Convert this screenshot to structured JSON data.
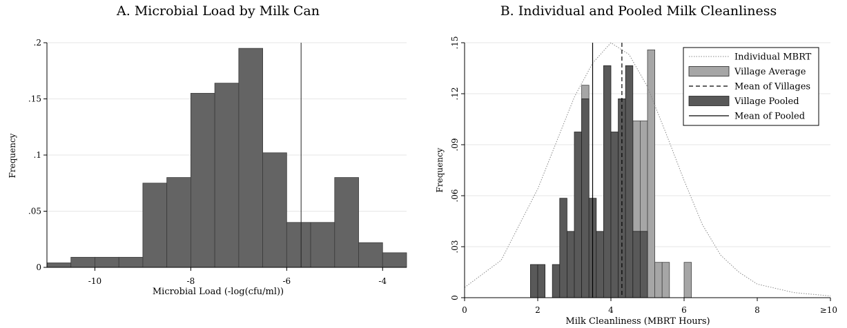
{
  "chart_data": [
    {
      "type": "bar",
      "title": "A. Microbial Load by Milk Can",
      "xlabel": "Microbial Load (-log(cfu/ml))",
      "ylabel": "Frequency",
      "xlim": [
        -11.0,
        -3.5
      ],
      "ylim": [
        0,
        0.2
      ],
      "xticks": [
        -10,
        -8,
        -6,
        -4
      ],
      "xtick_labels": [
        "-10",
        "-8",
        "-6",
        "-4"
      ],
      "yticks": [
        0,
        0.05,
        0.1,
        0.15,
        0.2
      ],
      "ytick_labels": [
        "0",
        ".05",
        ".1",
        ".15",
        ".2"
      ],
      "bin_width": 0.5,
      "bins": [
        {
          "start": -11.0,
          "value": 0.004
        },
        {
          "start": -10.5,
          "value": 0.009
        },
        {
          "start": -10.0,
          "value": 0.009
        },
        {
          "start": -9.5,
          "value": 0.009
        },
        {
          "start": -9.0,
          "value": 0.075
        },
        {
          "start": -8.5,
          "value": 0.08
        },
        {
          "start": -8.0,
          "value": 0.155
        },
        {
          "start": -7.5,
          "value": 0.164
        },
        {
          "start": -7.0,
          "value": 0.195
        },
        {
          "start": -6.5,
          "value": 0.102
        },
        {
          "start": -6.0,
          "value": 0.04
        },
        {
          "start": -5.5,
          "value": 0.04
        },
        {
          "start": -5.0,
          "value": 0.08
        },
        {
          "start": -4.5,
          "value": 0.022
        },
        {
          "start": -4.0,
          "value": 0.013
        }
      ],
      "vline": -5.7,
      "bar_color": "#646464",
      "grid": true
    },
    {
      "type": "bar",
      "title": "B. Individual and Pooled Milk Cleanliness",
      "xlabel": "Milk Cleanliness (MBRT Hours)",
      "ylabel": "Frequency",
      "xlim": [
        0,
        10
      ],
      "ylim": [
        0,
        0.15
      ],
      "xticks": [
        0,
        2,
        4,
        6,
        8,
        10
      ],
      "xtick_labels": [
        "0",
        "2",
        "4",
        "6",
        "8",
        "≥10"
      ],
      "yticks": [
        0,
        0.03,
        0.06,
        0.09,
        0.12,
        0.15
      ],
      "ytick_labels": [
        "0",
        ".03",
        ".06",
        ".09",
        ".12",
        ".15"
      ],
      "bin_width": 0.2,
      "legend_position": "top-right",
      "legend": [
        {
          "label": "Individual MBRT",
          "style": "dotted-line"
        },
        {
          "label": "Village Average",
          "style": "light-bar"
        },
        {
          "label": "Mean of Villages",
          "style": "dashed-line"
        },
        {
          "label": "Village Pooled",
          "style": "dark-bar"
        },
        {
          "label": "Mean of Pooled",
          "style": "solid-line"
        }
      ],
      "series": [
        {
          "name": "Village Average",
          "color": "#a6a6a6",
          "bins": [
            {
              "start": 3.2,
              "value": 0.125
            },
            {
              "start": 4.0,
              "value": 0.0833
            },
            {
              "start": 4.2,
              "value": 0.0833
            },
            {
              "start": 4.4,
              "value": 0.0833
            },
            {
              "start": 4.6,
              "value": 0.104
            },
            {
              "start": 4.8,
              "value": 0.104
            },
            {
              "start": 5.0,
              "value": 0.1458
            },
            {
              "start": 5.2,
              "value": 0.0208
            },
            {
              "start": 5.4,
              "value": 0.0208
            },
            {
              "start": 6.0,
              "value": 0.0208
            }
          ]
        },
        {
          "name": "Village Pooled",
          "color": "#595959",
          "bins": [
            {
              "start": 1.8,
              "value": 0.0195
            },
            {
              "start": 2.0,
              "value": 0.0195
            },
            {
              "start": 2.4,
              "value": 0.0195
            },
            {
              "start": 2.6,
              "value": 0.0585
            },
            {
              "start": 2.8,
              "value": 0.039
            },
            {
              "start": 3.0,
              "value": 0.0975
            },
            {
              "start": 3.2,
              "value": 0.117
            },
            {
              "start": 3.4,
              "value": 0.0585
            },
            {
              "start": 3.6,
              "value": 0.039
            },
            {
              "start": 3.8,
              "value": 0.1365
            },
            {
              "start": 4.0,
              "value": 0.0975
            },
            {
              "start": 4.2,
              "value": 0.117
            },
            {
              "start": 4.4,
              "value": 0.1365
            },
            {
              "start": 4.6,
              "value": 0.039
            },
            {
              "start": 4.8,
              "value": 0.039
            }
          ]
        },
        {
          "name": "Individual MBRT",
          "style": "dotted-curve",
          "points": [
            [
              0,
              0.006
            ],
            [
              1,
              0.022
            ],
            [
              2,
              0.064
            ],
            [
              3,
              0.118
            ],
            [
              3.5,
              0.138
            ],
            [
              4,
              0.15
            ],
            [
              4.5,
              0.143
            ],
            [
              5,
              0.124
            ],
            [
              5.5,
              0.097
            ],
            [
              6,
              0.069
            ],
            [
              6.5,
              0.043
            ],
            [
              7,
              0.025
            ],
            [
              7.5,
              0.015
            ],
            [
              8,
              0.008
            ],
            [
              9,
              0.003
            ],
            [
              10,
              0.001
            ]
          ]
        }
      ],
      "vlines": [
        {
          "name": "Mean of Pooled",
          "x": 3.5,
          "style": "solid"
        },
        {
          "name": "Mean of Villages",
          "x": 4.3,
          "style": "dashed"
        }
      ],
      "grid": true
    }
  ]
}
